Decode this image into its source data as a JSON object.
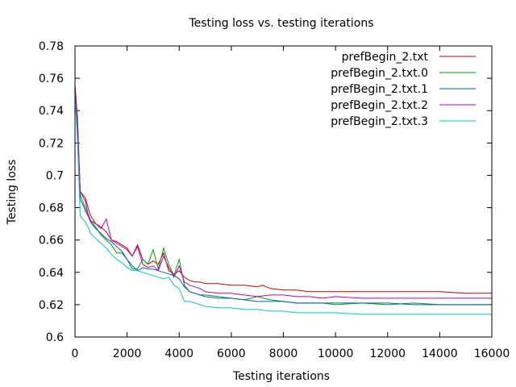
{
  "chart_data": {
    "type": "line",
    "title": "Testing loss vs. testing iterations",
    "xlabel": "Testing iterations",
    "ylabel": "Testing loss",
    "xlim": [
      0,
      16000
    ],
    "ylim": [
      0.6,
      0.78
    ],
    "xticks": [
      0,
      2000,
      4000,
      6000,
      8000,
      10000,
      12000,
      14000,
      16000
    ],
    "xtick_labels": [
      "0",
      "2000",
      "4000",
      "6000",
      "8000",
      "10000",
      "12000",
      "14000",
      "16000"
    ],
    "yticks": [
      0.6,
      0.62,
      0.64,
      0.66,
      0.68,
      0.7,
      0.72,
      0.74,
      0.76,
      0.78
    ],
    "ytick_labels": [
      "0.6",
      "0.62",
      "0.64",
      "0.66",
      "0.68",
      "0.7",
      "0.72",
      "0.74",
      "0.76",
      "0.78"
    ],
    "grid": false,
    "legend_position": "top-right",
    "series": [
      {
        "name": "prefBegin_2.txt",
        "color": "#cc0000",
        "x": [
          0,
          100,
          200,
          300,
          400,
          500,
          600,
          800,
          1000,
          1200,
          1400,
          1600,
          1800,
          2000,
          2200,
          2400,
          2600,
          2800,
          3000,
          3200,
          3400,
          3600,
          3800,
          4000,
          4200,
          4400,
          4600,
          4800,
          5000,
          5500,
          6000,
          6500,
          7000,
          7200,
          7500,
          8000,
          8500,
          9000,
          9500,
          10000,
          11000,
          12000,
          13000,
          14000,
          15000,
          16000
        ],
        "y": [
          0.756,
          0.735,
          0.69,
          0.688,
          0.686,
          0.68,
          0.675,
          0.67,
          0.668,
          0.665,
          0.66,
          0.659,
          0.657,
          0.655,
          0.65,
          0.657,
          0.648,
          0.645,
          0.647,
          0.645,
          0.652,
          0.641,
          0.639,
          0.641,
          0.637,
          0.635,
          0.634,
          0.634,
          0.633,
          0.633,
          0.632,
          0.632,
          0.631,
          0.632,
          0.63,
          0.629,
          0.629,
          0.628,
          0.628,
          0.628,
          0.628,
          0.628,
          0.628,
          0.628,
          0.627,
          0.627
        ]
      },
      {
        "name": "prefBegin_2.txt.0",
        "color": "#00a000",
        "x": [
          0,
          100,
          200,
          300,
          400,
          500,
          600,
          800,
          1000,
          1200,
          1400,
          1600,
          1800,
          2000,
          2200,
          2400,
          2600,
          2800,
          3000,
          3200,
          3400,
          3600,
          3800,
          4000,
          4200,
          4400,
          4600,
          4800,
          5000,
          5500,
          6000,
          6500,
          7000,
          7500,
          8000,
          8500,
          9000,
          9500,
          10000,
          11000,
          12000,
          13000,
          14000,
          15000,
          16000
        ],
        "y": [
          0.752,
          0.73,
          0.688,
          0.684,
          0.68,
          0.676,
          0.672,
          0.668,
          0.663,
          0.66,
          0.657,
          0.652,
          0.652,
          0.648,
          0.642,
          0.642,
          0.648,
          0.645,
          0.654,
          0.642,
          0.655,
          0.645,
          0.638,
          0.648,
          0.632,
          0.628,
          0.627,
          0.626,
          0.626,
          0.625,
          0.624,
          0.623,
          0.625,
          0.623,
          0.622,
          0.621,
          0.621,
          0.621,
          0.62,
          0.621,
          0.62,
          0.621,
          0.62,
          0.62,
          0.62
        ]
      },
      {
        "name": "prefBegin_2.txt.1",
        "color": "#0060c0",
        "x": [
          0,
          100,
          200,
          300,
          400,
          500,
          600,
          800,
          1000,
          1200,
          1400,
          1600,
          1800,
          2000,
          2200,
          2400,
          2600,
          2800,
          3000,
          3200,
          3400,
          3600,
          3800,
          4000,
          4200,
          4400,
          4600,
          4800,
          5000,
          5500,
          6000,
          6500,
          7000,
          7500,
          8000,
          8500,
          9000,
          9500,
          10000,
          11000,
          12000,
          13000,
          14000,
          15000,
          16000
        ],
        "y": [
          0.754,
          0.73,
          0.685,
          0.682,
          0.678,
          0.675,
          0.671,
          0.667,
          0.664,
          0.661,
          0.659,
          0.656,
          0.653,
          0.648,
          0.644,
          0.641,
          0.643,
          0.642,
          0.642,
          0.641,
          0.64,
          0.639,
          0.638,
          0.636,
          0.631,
          0.628,
          0.627,
          0.626,
          0.625,
          0.624,
          0.624,
          0.623,
          0.622,
          0.622,
          0.622,
          0.621,
          0.621,
          0.621,
          0.621,
          0.621,
          0.621,
          0.62,
          0.62,
          0.62,
          0.62
        ]
      },
      {
        "name": "prefBegin_2.txt.2",
        "color": "#c000c0",
        "x": [
          0,
          100,
          200,
          300,
          400,
          500,
          600,
          800,
          1000,
          1200,
          1400,
          1600,
          1800,
          2000,
          2200,
          2400,
          2600,
          2800,
          3000,
          3200,
          3400,
          3600,
          3800,
          4000,
          4200,
          4400,
          4600,
          4800,
          5000,
          5500,
          6000,
          6500,
          7000,
          7500,
          8000,
          8500,
          9000,
          9500,
          10000,
          11000,
          12000,
          13000,
          14000,
          15000,
          16000
        ],
        "y": [
          0.753,
          0.728,
          0.69,
          0.687,
          0.684,
          0.676,
          0.672,
          0.67,
          0.667,
          0.673,
          0.66,
          0.658,
          0.656,
          0.654,
          0.65,
          0.656,
          0.645,
          0.643,
          0.644,
          0.641,
          0.65,
          0.643,
          0.637,
          0.644,
          0.634,
          0.632,
          0.631,
          0.63,
          0.628,
          0.627,
          0.627,
          0.626,
          0.625,
          0.626,
          0.626,
          0.625,
          0.625,
          0.624,
          0.625,
          0.624,
          0.624,
          0.624,
          0.624,
          0.624,
          0.624
        ]
      },
      {
        "name": "prefBegin_2.txt.3",
        "color": "#00c8c8",
        "x": [
          0,
          100,
          200,
          300,
          400,
          500,
          600,
          800,
          1000,
          1200,
          1400,
          1600,
          1800,
          2000,
          2200,
          2400,
          2600,
          2800,
          3000,
          3200,
          3400,
          3600,
          3800,
          4000,
          4200,
          4400,
          4600,
          4800,
          5000,
          5500,
          6000,
          6500,
          7000,
          7500,
          8000,
          8500,
          9000,
          9500,
          10000,
          11000,
          12000,
          13000,
          14000,
          15000,
          16000
        ],
        "y": [
          0.75,
          0.72,
          0.675,
          0.673,
          0.671,
          0.668,
          0.664,
          0.661,
          0.658,
          0.655,
          0.651,
          0.648,
          0.646,
          0.643,
          0.641,
          0.641,
          0.64,
          0.639,
          0.638,
          0.637,
          0.636,
          0.637,
          0.632,
          0.63,
          0.622,
          0.622,
          0.621,
          0.62,
          0.619,
          0.618,
          0.618,
          0.617,
          0.617,
          0.616,
          0.616,
          0.615,
          0.615,
          0.615,
          0.615,
          0.614,
          0.614,
          0.614,
          0.614,
          0.614,
          0.614
        ]
      }
    ]
  }
}
